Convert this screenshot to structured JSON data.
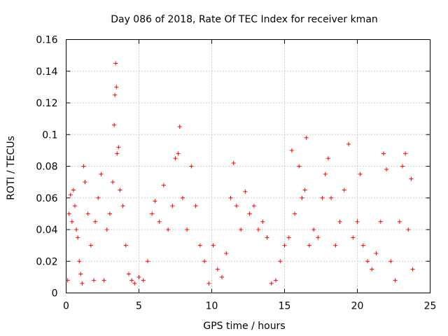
{
  "chart_data": {
    "type": "scatter",
    "title": "Day 086 of 2018, Rate Of TEC Index for receiver kman",
    "xlabel": "GPS time / hours",
    "ylabel": "ROTI / TECUs",
    "xlim": [
      0,
      25
    ],
    "ylim": [
      0,
      0.16
    ],
    "grid": true,
    "marker": "+",
    "color": "#ff0000",
    "xticks": [
      0,
      5,
      10,
      15,
      20,
      25
    ],
    "xtick_labels": [
      "0",
      "5",
      "10",
      "15",
      "20",
      "25"
    ],
    "yticks": [
      0,
      0.02,
      0.04,
      0.06,
      0.08,
      0.1,
      0.12,
      0.14,
      0.16
    ],
    "ytick_labels": [
      "0",
      "0.02",
      "0.04",
      "0.06",
      "0.08",
      "0.1",
      "0.12",
      "0.14",
      "0.16"
    ],
    "series": [
      {
        "name": "ROTI",
        "points": [
          [
            0.1,
            0.008
          ],
          [
            0.2,
            0.05
          ],
          [
            0.3,
            0.062
          ],
          [
            0.4,
            0.045
          ],
          [
            0.5,
            0.065
          ],
          [
            0.6,
            0.055
          ],
          [
            0.7,
            0.04
          ],
          [
            0.8,
            0.035
          ],
          [
            0.9,
            0.02
          ],
          [
            1.0,
            0.012
          ],
          [
            1.1,
            0.006
          ],
          [
            1.2,
            0.08
          ],
          [
            1.3,
            0.07
          ],
          [
            1.5,
            0.05
          ],
          [
            1.7,
            0.03
          ],
          [
            1.9,
            0.008
          ],
          [
            2.0,
            0.045
          ],
          [
            2.2,
            0.06
          ],
          [
            2.4,
            0.075
          ],
          [
            2.6,
            0.008
          ],
          [
            2.8,
            0.04
          ],
          [
            3.0,
            0.05
          ],
          [
            3.2,
            0.07
          ],
          [
            3.3,
            0.106
          ],
          [
            3.35,
            0.125
          ],
          [
            3.4,
            0.145
          ],
          [
            3.45,
            0.13
          ],
          [
            3.5,
            0.088
          ],
          [
            3.6,
            0.092
          ],
          [
            3.7,
            0.065
          ],
          [
            3.9,
            0.055
          ],
          [
            4.1,
            0.03
          ],
          [
            4.3,
            0.012
          ],
          [
            4.5,
            0.008
          ],
          [
            4.7,
            0.006
          ],
          [
            5.0,
            0.01
          ],
          [
            5.3,
            0.008
          ],
          [
            5.6,
            0.02
          ],
          [
            5.9,
            0.05
          ],
          [
            6.1,
            0.058
          ],
          [
            6.4,
            0.045
          ],
          [
            6.7,
            0.068
          ],
          [
            7.0,
            0.04
          ],
          [
            7.3,
            0.055
          ],
          [
            7.5,
            0.085
          ],
          [
            7.7,
            0.088
          ],
          [
            7.8,
            0.105
          ],
          [
            8.0,
            0.06
          ],
          [
            8.3,
            0.04
          ],
          [
            8.6,
            0.08
          ],
          [
            8.9,
            0.055
          ],
          [
            9.2,
            0.03
          ],
          [
            9.5,
            0.02
          ],
          [
            9.8,
            0.006
          ],
          [
            10.1,
            0.03
          ],
          [
            10.4,
            0.015
          ],
          [
            10.7,
            0.01
          ],
          [
            11.0,
            0.025
          ],
          [
            11.3,
            0.06
          ],
          [
            11.5,
            0.082
          ],
          [
            11.7,
            0.055
          ],
          [
            12.0,
            0.04
          ],
          [
            12.3,
            0.064
          ],
          [
            12.6,
            0.05
          ],
          [
            12.9,
            0.055
          ],
          [
            13.2,
            0.04
          ],
          [
            13.5,
            0.045
          ],
          [
            13.8,
            0.035
          ],
          [
            14.1,
            0.006
          ],
          [
            14.4,
            0.008
          ],
          [
            14.7,
            0.02
          ],
          [
            15.0,
            0.03
          ],
          [
            15.3,
            0.035
          ],
          [
            15.5,
            0.09
          ],
          [
            15.7,
            0.05
          ],
          [
            16.0,
            0.08
          ],
          [
            16.2,
            0.06
          ],
          [
            16.4,
            0.065
          ],
          [
            16.5,
            0.098
          ],
          [
            16.7,
            0.03
          ],
          [
            17.0,
            0.04
          ],
          [
            17.3,
            0.035
          ],
          [
            17.6,
            0.06
          ],
          [
            17.8,
            0.075
          ],
          [
            18.0,
            0.085
          ],
          [
            18.2,
            0.06
          ],
          [
            18.5,
            0.03
          ],
          [
            18.8,
            0.045
          ],
          [
            19.1,
            0.065
          ],
          [
            19.4,
            0.094
          ],
          [
            19.7,
            0.035
          ],
          [
            20.0,
            0.045
          ],
          [
            20.2,
            0.075
          ],
          [
            20.4,
            0.03
          ],
          [
            20.7,
            0.02
          ],
          [
            21.0,
            0.015
          ],
          [
            21.3,
            0.025
          ],
          [
            21.6,
            0.045
          ],
          [
            21.8,
            0.088
          ],
          [
            22.0,
            0.078
          ],
          [
            22.3,
            0.02
          ],
          [
            22.6,
            0.008
          ],
          [
            22.9,
            0.045
          ],
          [
            23.1,
            0.08
          ],
          [
            23.3,
            0.088
          ],
          [
            23.5,
            0.04
          ],
          [
            23.7,
            0.072
          ],
          [
            23.8,
            0.015
          ]
        ]
      }
    ]
  }
}
